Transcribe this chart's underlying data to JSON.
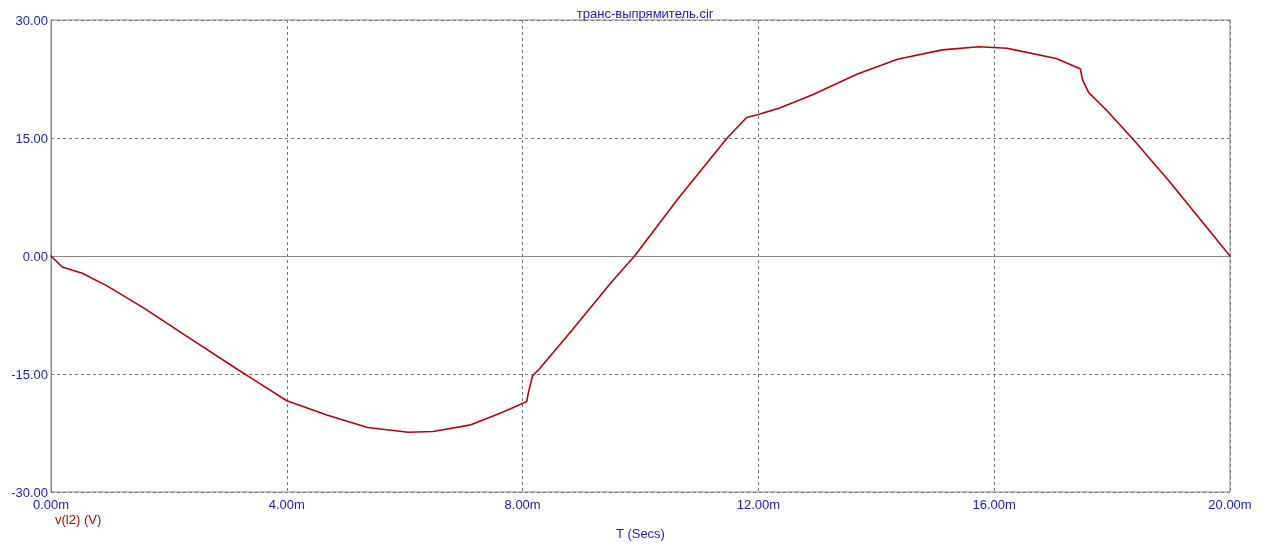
{
  "chart_data": {
    "type": "line",
    "title": "транс-выпрямитель.cir",
    "xlabel": "T (Secs)",
    "xlim": [
      0,
      20
    ],
    "ylim": [
      -30,
      30
    ],
    "xticks": [
      {
        "value": 0,
        "label": "0.00m"
      },
      {
        "value": 4,
        "label": "4.00m"
      },
      {
        "value": 8,
        "label": "8.00m"
      },
      {
        "value": 12,
        "label": "12.00m"
      },
      {
        "value": 16,
        "label": "16.00m"
      },
      {
        "value": 20,
        "label": "20.00m"
      }
    ],
    "yticks": [
      {
        "value": -30,
        "label": "-30.00"
      },
      {
        "value": -15,
        "label": "-15.00"
      },
      {
        "value": 0,
        "label": "0.00"
      },
      {
        "value": 15,
        "label": "15.00"
      },
      {
        "value": 30,
        "label": "30.00"
      }
    ],
    "grid": true,
    "legend": "bottom left",
    "marker": "none",
    "line_style": "solid",
    "series": [
      {
        "name": "v(l2) (V)",
        "color": "#c00000",
        "x": [
          0,
          0.19,
          0.53,
          0.95,
          1.57,
          2.26,
          3.16,
          4.0,
          4.68,
          5.37,
          6.06,
          6.48,
          7.1,
          7.65,
          8.07,
          8.1,
          8.17,
          8.28,
          8.83,
          9.52,
          9.9,
          10.64,
          11.47,
          11.8,
          12.0,
          12.36,
          12.92,
          13.67,
          14.36,
          15.12,
          15.74,
          16.22,
          17.05,
          17.46,
          17.5,
          17.6,
          17.91,
          18.36,
          18.98,
          19.6,
          20.0
        ],
        "values": [
          0,
          -1.4,
          -2.2,
          -3.8,
          -6.6,
          -10.0,
          -14.4,
          -18.4,
          -20.2,
          -21.8,
          -22.4,
          -22.3,
          -21.5,
          -19.9,
          -18.5,
          -17.3,
          -15.2,
          -14.4,
          -9.5,
          -3.2,
          0,
          7.3,
          15.0,
          17.6,
          18.0,
          18.8,
          20.5,
          23.1,
          25.0,
          26.2,
          26.6,
          26.4,
          25.1,
          23.8,
          22.4,
          20.8,
          18.5,
          14.8,
          9.4,
          3.7,
          0
        ]
      }
    ]
  }
}
